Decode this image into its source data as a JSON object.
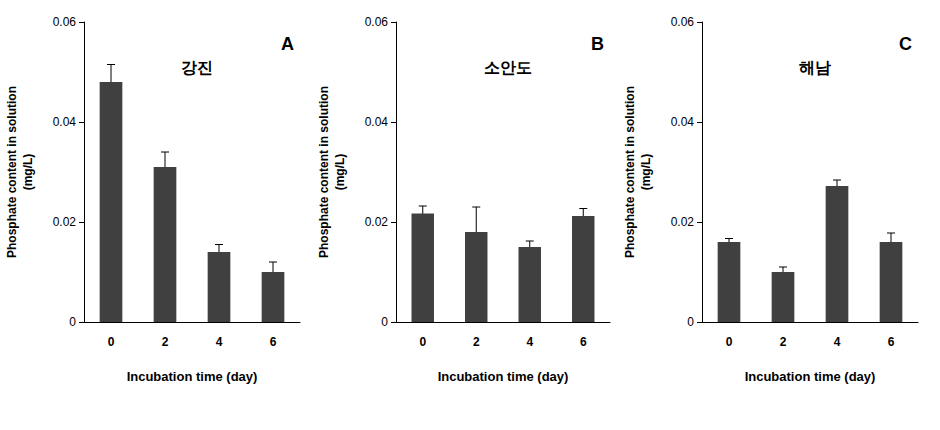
{
  "chart_data": [
    {
      "type": "bar",
      "title": "강진",
      "annotations": [
        "A"
      ],
      "x_label": "Incubation time (day)",
      "y_label": "Phosphate content in solution\n(mg/L)",
      "categories": [
        "0",
        "2",
        "4",
        "6"
      ],
      "values": [
        0.048,
        0.031,
        0.014,
        0.01
      ],
      "errors": [
        0.0035,
        0.003,
        0.0015,
        0.002
      ],
      "color": "#404040",
      "ylim": [
        0,
        0.06
      ],
      "yticks": [
        0,
        0.02,
        0.04,
        0.06
      ],
      "grid": false
    },
    {
      "type": "bar",
      "title": "소안도",
      "annotations": [
        "B"
      ],
      "x_label": "Incubation time (day)",
      "y_label": "Phosphate content in solution\n(mg/L)",
      "categories": [
        "0",
        "2",
        "4",
        "6"
      ],
      "values": [
        0.0217,
        0.018,
        0.015,
        0.0212
      ],
      "errors": [
        0.0015,
        0.005,
        0.0012,
        0.0015
      ],
      "color": "#404040",
      "ylim": [
        0,
        0.06
      ],
      "yticks": [
        0,
        0.02,
        0.04,
        0.06
      ],
      "grid": false
    },
    {
      "type": "bar",
      "title": "해남",
      "annotations": [
        "C"
      ],
      "x_label": "Incubation time (day)",
      "y_label": "Phosphate content in solution\n(mg/L)",
      "categories": [
        "0",
        "2",
        "4",
        "6"
      ],
      "values": [
        0.016,
        0.01,
        0.0272,
        0.016
      ],
      "errors": [
        0.0007,
        0.001,
        0.0012,
        0.0018
      ],
      "color": "#404040",
      "ylim": [
        0,
        0.06
      ],
      "yticks": [
        0,
        0.02,
        0.04,
        0.06
      ],
      "grid": false
    }
  ]
}
